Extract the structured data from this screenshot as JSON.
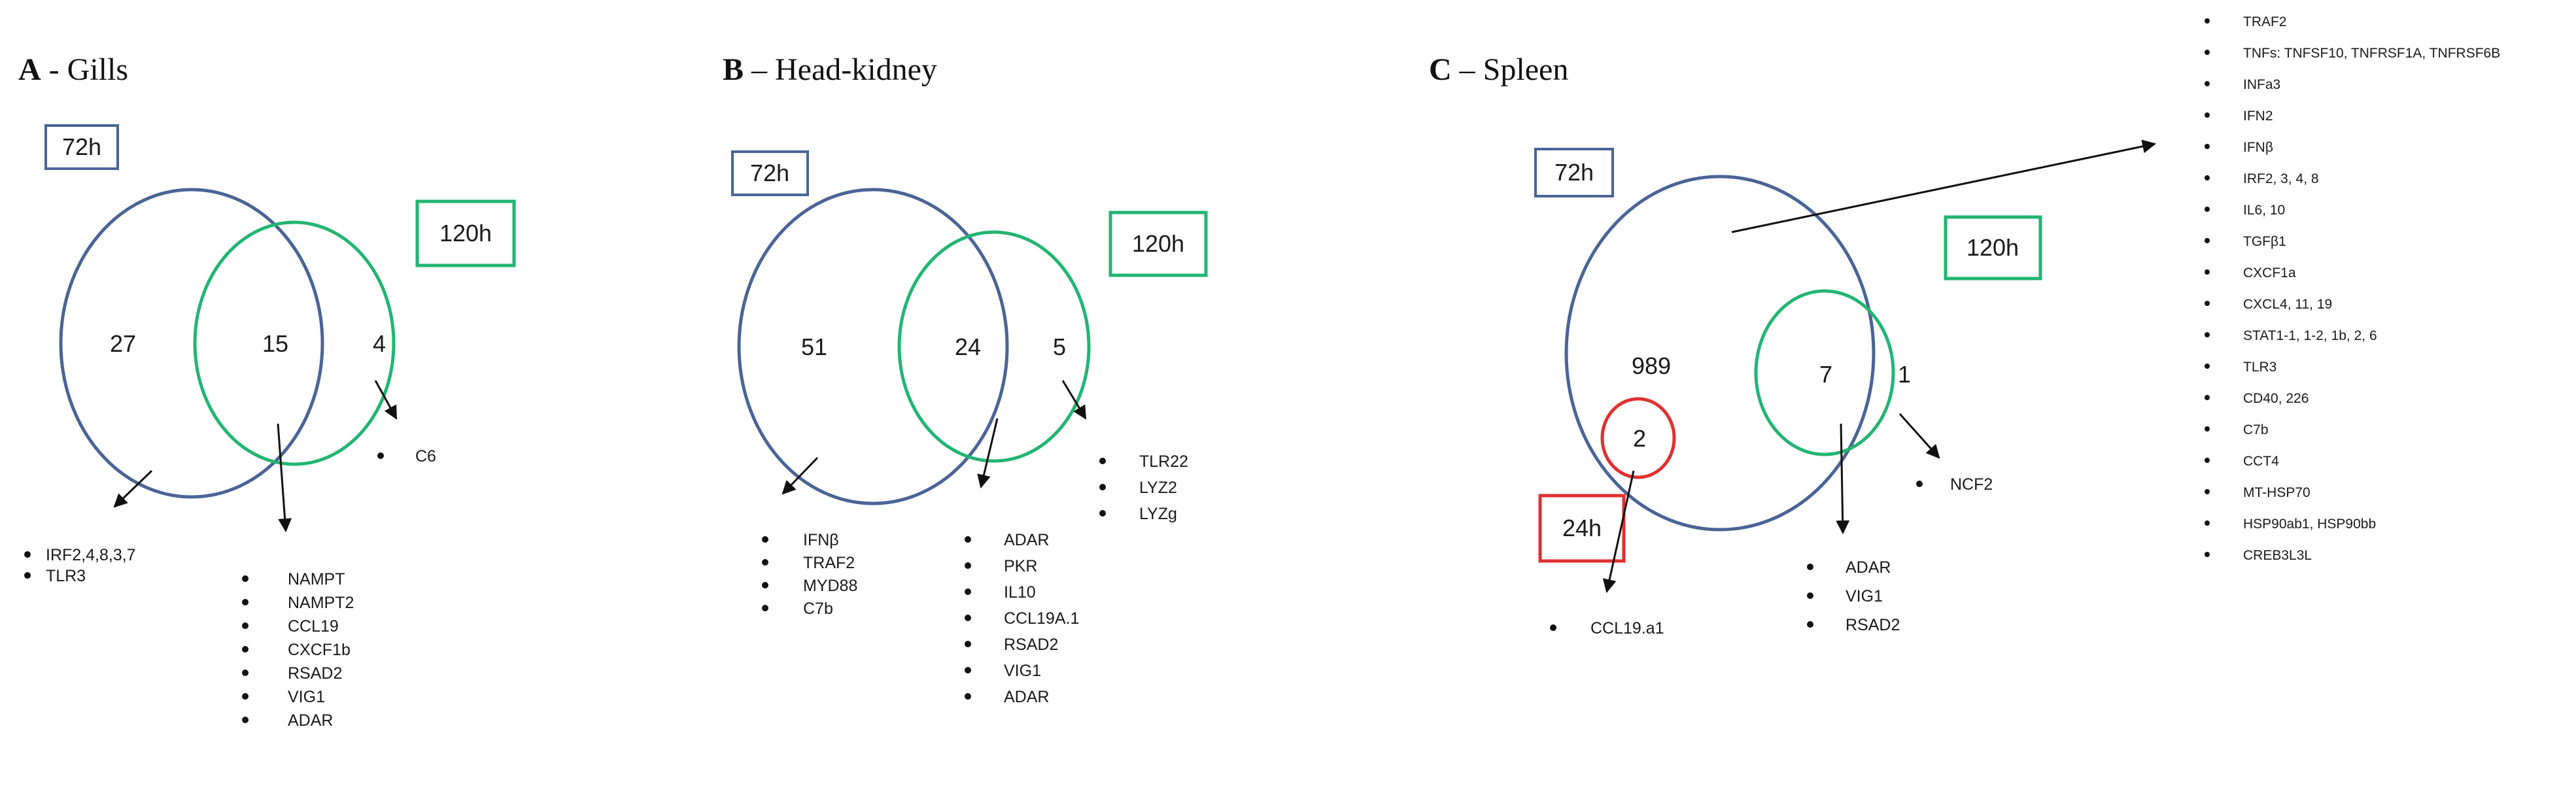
{
  "colors": {
    "t72": "#4a6496",
    "t120": "#22b573",
    "t24": "#e03030",
    "ink": "#111111"
  },
  "panels": [
    {
      "letter": "A",
      "name": " - Gills",
      "label_72": "72h",
      "label_120": "120h",
      "counts": {
        "only72": "27",
        "shared": "15",
        "only120": "4"
      },
      "lists": {
        "only72": [
          "IRF2,4,8,3,7",
          "TLR3"
        ],
        "shared": [
          "NAMPT",
          "NAMPT2",
          "CCL19",
          "CXCF1b",
          "RSAD2",
          "VIG1",
          "ADAR"
        ],
        "only120": [
          "C6"
        ]
      }
    },
    {
      "letter": "B",
      "name": " – Head-kidney",
      "label_72": "72h",
      "label_120": "120h",
      "counts": {
        "only72": "51",
        "shared": "24",
        "only120": "5"
      },
      "lists": {
        "only72": [
          "IFNβ",
          "TRAF2",
          "MYD88",
          "C7b"
        ],
        "shared": [
          "ADAR",
          "PKR",
          "IL10",
          "CCL19A.1",
          "RSAD2",
          "VIG1",
          "ADAR"
        ],
        "only120": [
          "TLR22",
          "LYZ2",
          "LYZg"
        ]
      }
    },
    {
      "letter": "C",
      "name": " – Spleen",
      "label_72": "72h",
      "label_120": "120h",
      "label_24": "24h",
      "counts": {
        "only72": "989",
        "shared": "7",
        "only120": "1",
        "t24": "2"
      },
      "lists": {
        "only72": [
          "TRAF2",
          "TNFs: TNFSF10, TNFRSF1A, TNFRSF6B",
          "INFa3",
          "IFN2",
          "IFNβ",
          "IRF2, 3, 4, 8",
          "IL6, 10",
          "TGFβ1",
          "CXCF1a",
          "CXCL4, 11, 19",
          "STAT1-1, 1-2, 1b, 2, 6",
          "TLR3",
          "CD40, 226",
          "C7b",
          "CCT4",
          "MT-HSP70",
          "HSP90ab1, HSP90bb",
          "CREB3L3L"
        ],
        "shared": [
          "ADAR",
          "VIG1",
          "RSAD2"
        ],
        "only120": [
          "NCF2"
        ],
        "t24": [
          "CCL19.a1"
        ]
      }
    }
  ]
}
